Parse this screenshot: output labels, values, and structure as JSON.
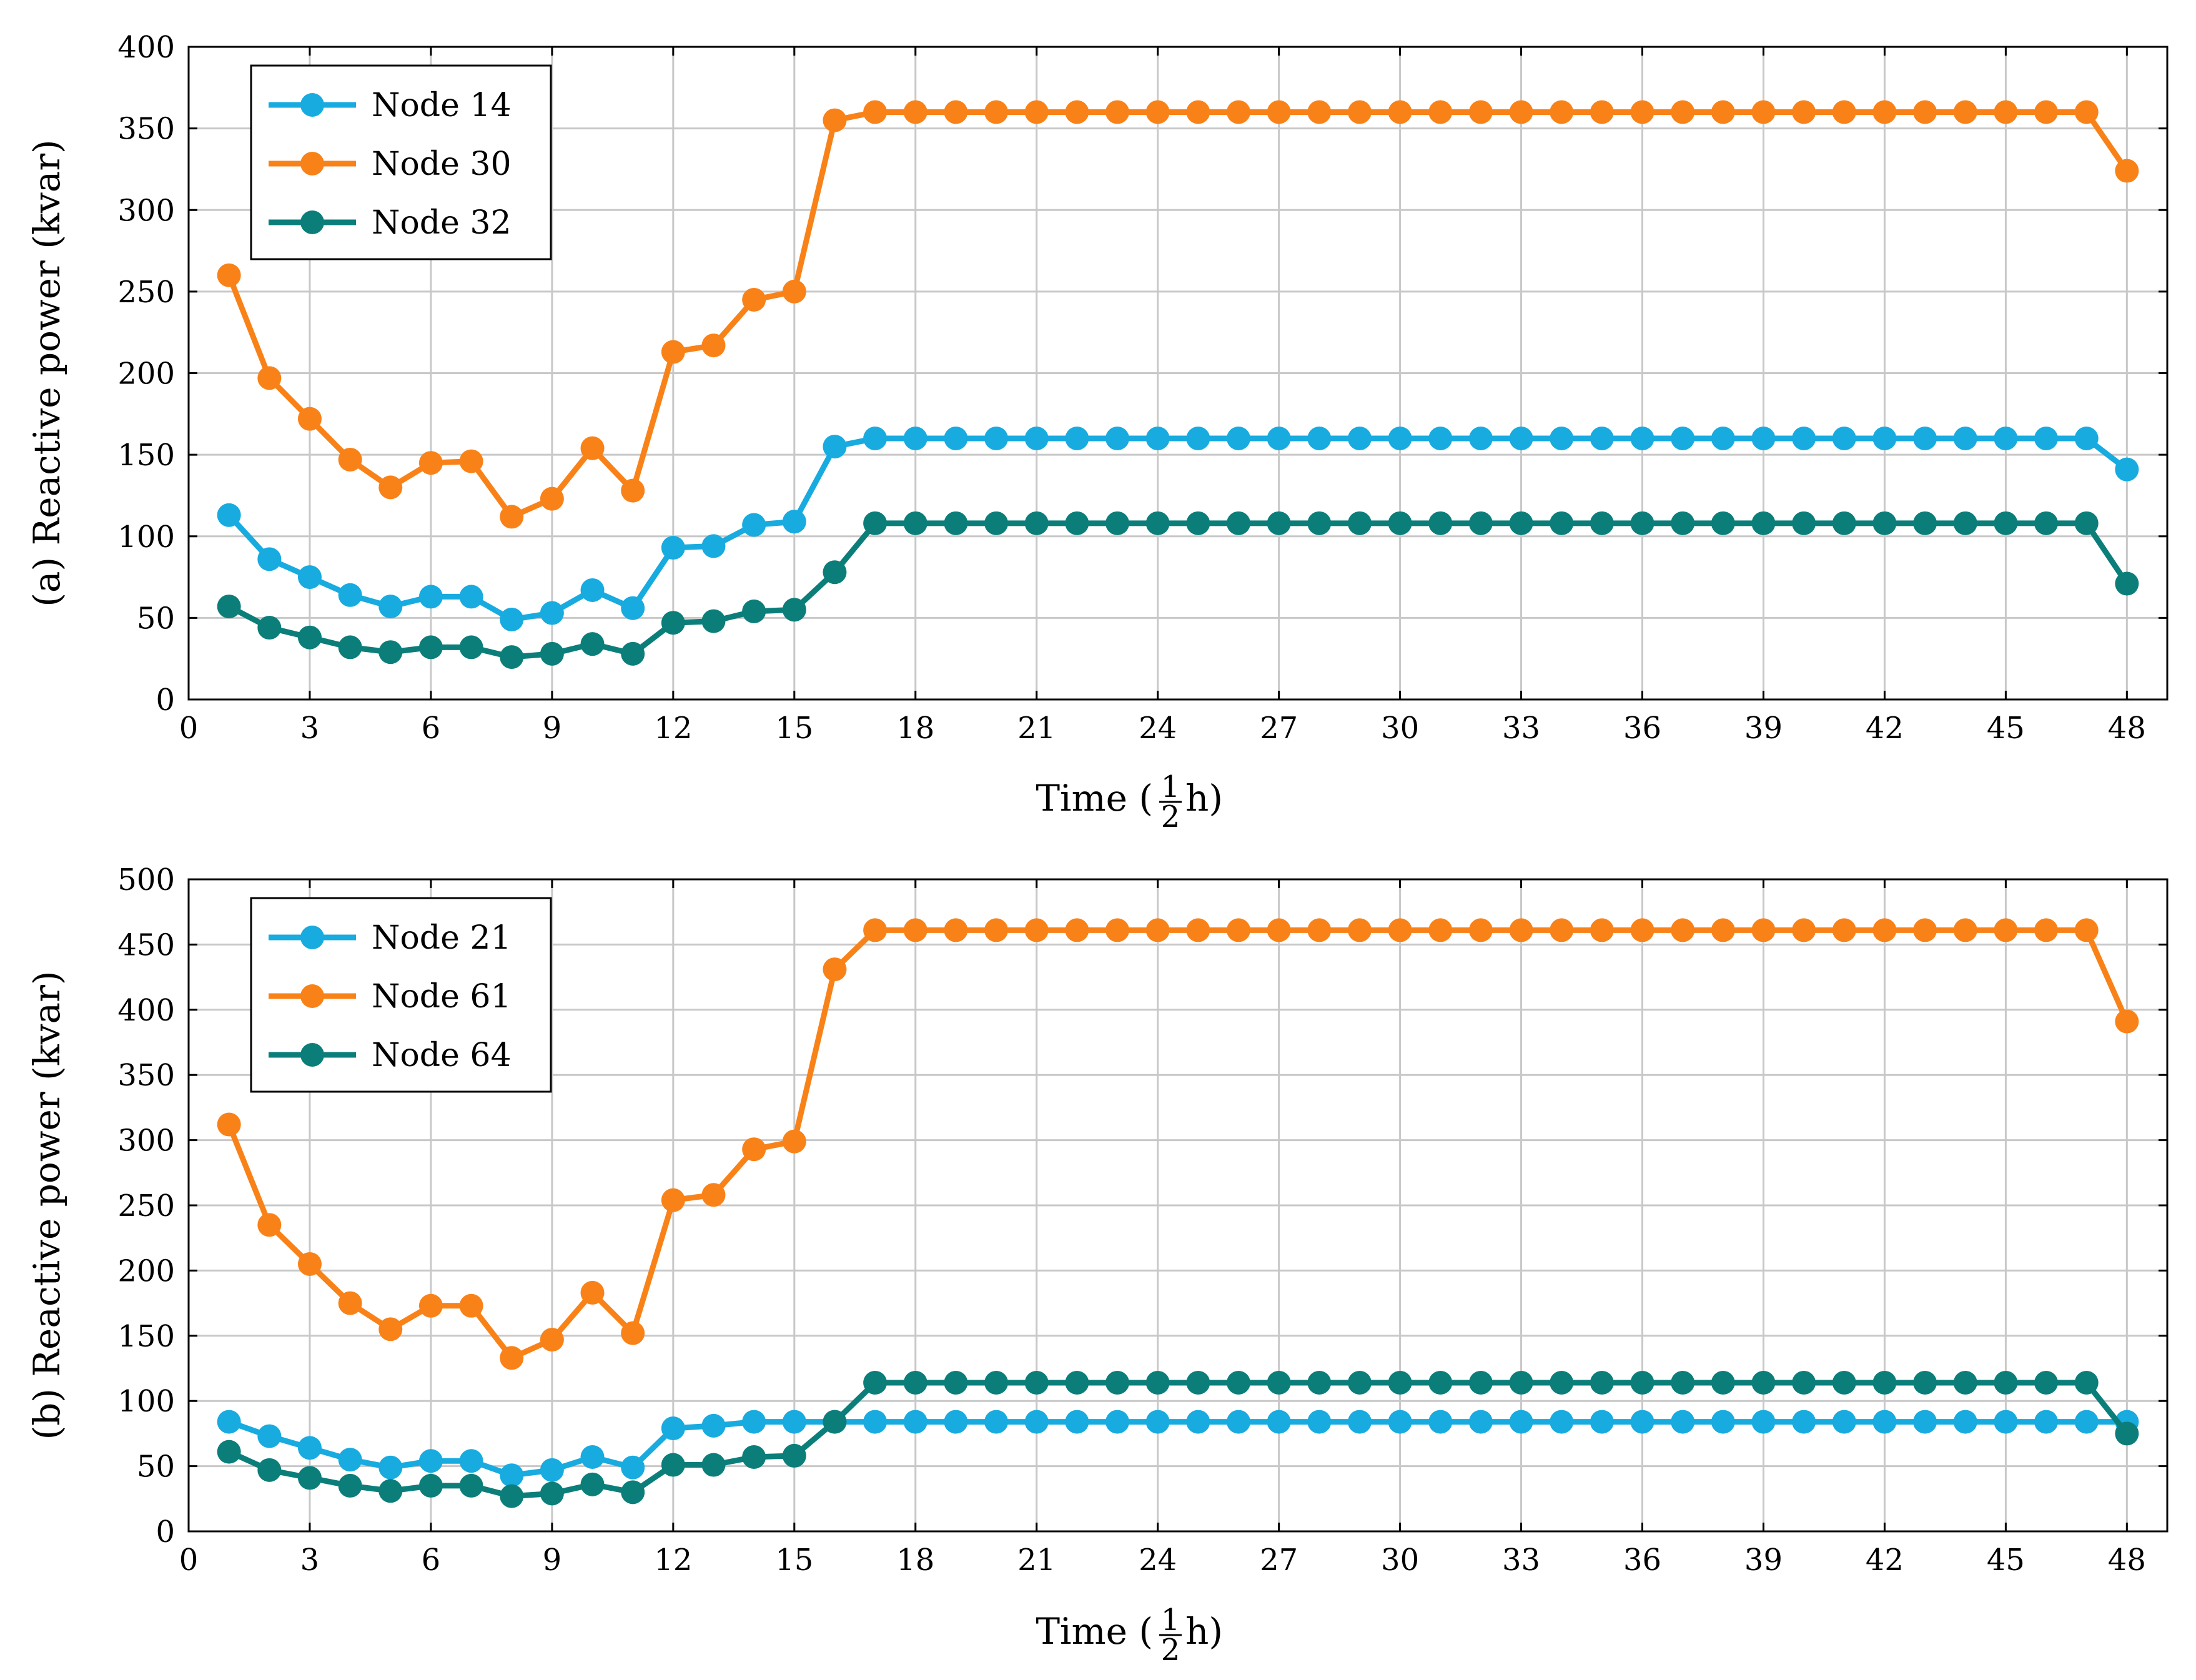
{
  "chart_data": [
    {
      "type": "line",
      "panel": "a",
      "ylabel": "(a) Reactive power (kvar)",
      "xlabel": "Time (",
      "xlabel_unit": "h)",
      "xlabel_frac_num": "1",
      "xlabel_frac_den": "2",
      "xlim": [
        0,
        49
      ],
      "ylim": [
        0,
        400
      ],
      "xticks": [
        "0",
        "3",
        "6",
        "9",
        "12",
        "15",
        "18",
        "21",
        "24",
        "27",
        "30",
        "33",
        "36",
        "39",
        "42",
        "45",
        "48"
      ],
      "yticks": [
        "0",
        "50",
        "100",
        "150",
        "200",
        "250",
        "300",
        "350",
        "400"
      ],
      "grid": true,
      "legend_position": "top-left",
      "x": [
        1,
        2,
        3,
        4,
        5,
        6,
        7,
        8,
        9,
        10,
        11,
        12,
        13,
        14,
        15,
        16,
        17,
        18,
        19,
        20,
        21,
        22,
        23,
        24,
        25,
        26,
        27,
        28,
        29,
        30,
        31,
        32,
        33,
        34,
        35,
        36,
        37,
        38,
        39,
        40,
        41,
        42,
        43,
        44,
        45,
        46,
        47,
        48
      ],
      "series": [
        {
          "name": "Node 14",
          "color": "#17ABE0",
          "values": [
            113,
            86,
            75,
            64,
            57,
            63,
            63,
            49,
            53,
            67,
            56,
            93,
            94,
            107,
            109,
            155,
            160,
            160,
            160,
            160,
            160,
            160,
            160,
            160,
            160,
            160,
            160,
            160,
            160,
            160,
            160,
            160,
            160,
            160,
            160,
            160,
            160,
            160,
            160,
            160,
            160,
            160,
            160,
            160,
            160,
            160,
            160,
            141
          ]
        },
        {
          "name": "Node 30",
          "color": "#F98218",
          "values": [
            260,
            197,
            172,
            147,
            130,
            145,
            146,
            112,
            123,
            154,
            128,
            213,
            217,
            245,
            250,
            355,
            360,
            360,
            360,
            360,
            360,
            360,
            360,
            360,
            360,
            360,
            360,
            360,
            360,
            360,
            360,
            360,
            360,
            360,
            360,
            360,
            360,
            360,
            360,
            360,
            360,
            360,
            360,
            360,
            360,
            360,
            360,
            324
          ]
        },
        {
          "name": "Node 32",
          "color": "#0B7E7A",
          "values": [
            57,
            44,
            38,
            32,
            29,
            32,
            32,
            26,
            28,
            34,
            28,
            47,
            48,
            54,
            55,
            78,
            108,
            108,
            108,
            108,
            108,
            108,
            108,
            108,
            108,
            108,
            108,
            108,
            108,
            108,
            108,
            108,
            108,
            108,
            108,
            108,
            108,
            108,
            108,
            108,
            108,
            108,
            108,
            108,
            108,
            108,
            108,
            71
          ]
        }
      ]
    },
    {
      "type": "line",
      "panel": "b",
      "ylabel": "(b) Reactive power (kvar)",
      "xlabel": "Time (",
      "xlabel_unit": "h)",
      "xlabel_frac_num": "1",
      "xlabel_frac_den": "2",
      "xlim": [
        0,
        49
      ],
      "ylim": [
        0,
        500
      ],
      "xticks": [
        "0",
        "3",
        "6",
        "9",
        "12",
        "15",
        "18",
        "21",
        "24",
        "27",
        "30",
        "33",
        "36",
        "39",
        "42",
        "45",
        "48"
      ],
      "yticks": [
        "0",
        "50",
        "100",
        "150",
        "200",
        "250",
        "300",
        "350",
        "400",
        "450",
        "500"
      ],
      "grid": true,
      "legend_position": "top-left",
      "x": [
        1,
        2,
        3,
        4,
        5,
        6,
        7,
        8,
        9,
        10,
        11,
        12,
        13,
        14,
        15,
        16,
        17,
        18,
        19,
        20,
        21,
        22,
        23,
        24,
        25,
        26,
        27,
        28,
        29,
        30,
        31,
        32,
        33,
        34,
        35,
        36,
        37,
        38,
        39,
        40,
        41,
        42,
        43,
        44,
        45,
        46,
        47,
        48
      ],
      "series": [
        {
          "name": "Node 21",
          "color": "#17ABE0",
          "values": [
            84,
            73,
            64,
            55,
            49,
            54,
            54,
            43,
            47,
            57,
            49,
            79,
            81,
            84,
            84,
            84,
            84,
            84,
            84,
            84,
            84,
            84,
            84,
            84,
            84,
            84,
            84,
            84,
            84,
            84,
            84,
            84,
            84,
            84,
            84,
            84,
            84,
            84,
            84,
            84,
            84,
            84,
            84,
            84,
            84,
            84,
            84,
            84
          ]
        },
        {
          "name": "Node 61",
          "color": "#F98218",
          "values": [
            312,
            235,
            205,
            175,
            155,
            173,
            173,
            133,
            147,
            183,
            152,
            254,
            258,
            293,
            299,
            431,
            461,
            461,
            461,
            461,
            461,
            461,
            461,
            461,
            461,
            461,
            461,
            461,
            461,
            461,
            461,
            461,
            461,
            461,
            461,
            461,
            461,
            461,
            461,
            461,
            461,
            461,
            461,
            461,
            461,
            461,
            461,
            391
          ]
        },
        {
          "name": "Node 64",
          "color": "#0B7E7A",
          "values": [
            61,
            47,
            41,
            35,
            31,
            35,
            35,
            27,
            29,
            36,
            30,
            51,
            51,
            57,
            58,
            84,
            114,
            114,
            114,
            114,
            114,
            114,
            114,
            114,
            114,
            114,
            114,
            114,
            114,
            114,
            114,
            114,
            114,
            114,
            114,
            114,
            114,
            114,
            114,
            114,
            114,
            114,
            114,
            114,
            114,
            114,
            114,
            75
          ]
        }
      ]
    }
  ]
}
